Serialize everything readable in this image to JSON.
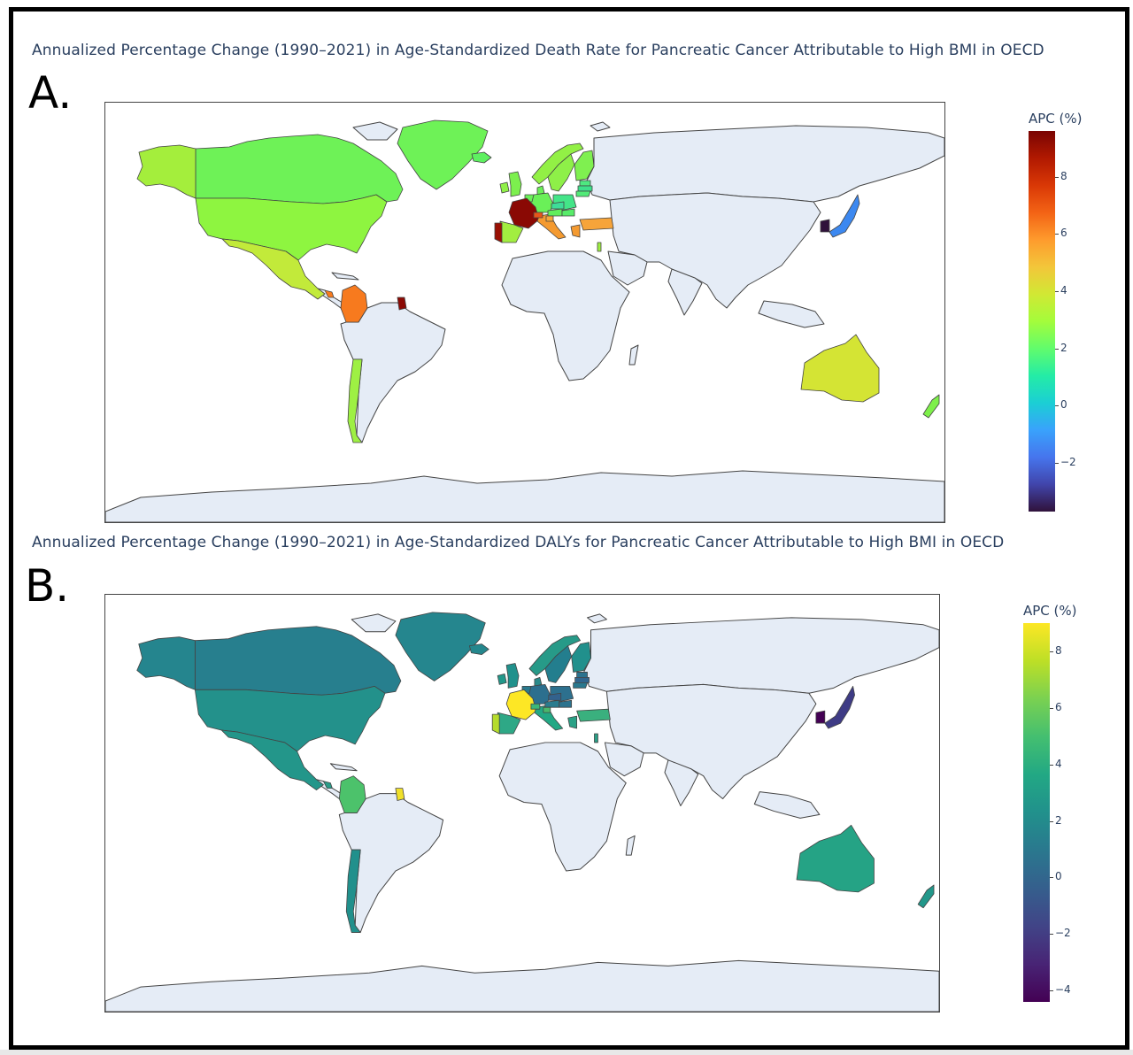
{
  "panels": [
    {
      "letter": "A.",
      "title": "Annualized Percentage Change (1990–2021) in Age-Standardized Death Rate for Pancreatic Cancer Attributable to High BMI in OECD",
      "colorbar": {
        "title": "APC (%)",
        "ticks": [
          "8",
          "6",
          "4",
          "2",
          "0",
          "−2"
        ],
        "tick_values": [
          8,
          6,
          4,
          2,
          0,
          -2
        ],
        "range": [
          -3.7,
          9.6
        ],
        "colorscale": [
          "#30123b",
          "#4145ab",
          "#4675ed",
          "#39a2fc",
          "#1bcfd4",
          "#24eca6",
          "#61fc6c",
          "#a4fc3b",
          "#d1e834",
          "#f3c63a",
          "#fe9b2d",
          "#f36315",
          "#d93806",
          "#b11901",
          "#7a0402"
        ]
      },
      "countries": [
        {
          "name": "Canada",
          "color": "#6ef257"
        },
        {
          "name": "United States",
          "color": "#8ef540"
        },
        {
          "name": "Alaska",
          "color": "#a4ee3c"
        },
        {
          "name": "Mexico",
          "color": "#c2ea3a"
        },
        {
          "name": "Greenland",
          "color": "#6ef257"
        },
        {
          "name": "Costa Rica",
          "color": "#f77a1e"
        },
        {
          "name": "Colombia",
          "color": "#f77a1e"
        },
        {
          "name": "French Guiana",
          "color": "#8c0a04"
        },
        {
          "name": "Chile",
          "color": "#9ef043"
        },
        {
          "name": "Iceland",
          "color": "#5ef060"
        },
        {
          "name": "Ireland",
          "color": "#90f048"
        },
        {
          "name": "United Kingdom",
          "color": "#7cf04e"
        },
        {
          "name": "Norway",
          "color": "#92f045"
        },
        {
          "name": "Sweden",
          "color": "#8ef048"
        },
        {
          "name": "Finland",
          "color": "#7ff050"
        },
        {
          "name": "Estonia",
          "color": "#4ee880"
        },
        {
          "name": "Latvia",
          "color": "#3ee08a"
        },
        {
          "name": "Lithuania",
          "color": "#52ea78"
        },
        {
          "name": "Denmark",
          "color": "#6af058"
        },
        {
          "name": "Germany",
          "color": "#6af058"
        },
        {
          "name": "Poland",
          "color": "#44e488"
        },
        {
          "name": "Netherlands",
          "color": "#6af058"
        },
        {
          "name": "France",
          "color": "#8a0904"
        },
        {
          "name": "Spain",
          "color": "#a2ee40"
        },
        {
          "name": "Portugal",
          "color": "#9a1003"
        },
        {
          "name": "Italy",
          "color": "#f49a30"
        },
        {
          "name": "Switzerland",
          "color": "#e8551a"
        },
        {
          "name": "Austria",
          "color": "#62ee5c"
        },
        {
          "name": "Czechia",
          "color": "#3edc98"
        },
        {
          "name": "Hungary",
          "color": "#58ec6a"
        },
        {
          "name": "Slovenia",
          "color": "#f4a83a"
        },
        {
          "name": "Greece",
          "color": "#f49a30"
        },
        {
          "name": "Turkey",
          "color": "#f6a43a"
        },
        {
          "name": "Israel",
          "color": "#9ef040"
        },
        {
          "name": "South Korea",
          "color": "#30123b"
        },
        {
          "name": "Japan",
          "color": "#3c88f0"
        },
        {
          "name": "Australia",
          "color": "#d4e434"
        },
        {
          "name": "New Zealand",
          "color": "#7ef04a"
        }
      ]
    },
    {
      "letter": "B.",
      "title": "Annualized Percentage Change (1990–2021) in Age-Standardized DALYs for Pancreatic Cancer Attributable to High BMI in OECD",
      "colorbar": {
        "title": "APC (%)",
        "ticks": [
          "8",
          "6",
          "4",
          "2",
          "0",
          "−2",
          "−4"
        ],
        "tick_values": [
          8,
          6,
          4,
          2,
          0,
          -2,
          -4
        ],
        "range": [
          -4.4,
          9.0
        ],
        "colorscale": [
          "#440154",
          "#482475",
          "#414487",
          "#355f8d",
          "#2a788e",
          "#21918c",
          "#22a884",
          "#44bf70",
          "#7ad151",
          "#bddf26",
          "#fde725"
        ]
      },
      "countries": [
        {
          "name": "Canada",
          "color": "#277f8e"
        },
        {
          "name": "United States",
          "color": "#23918b"
        },
        {
          "name": "Alaska",
          "color": "#25858e"
        },
        {
          "name": "Mexico",
          "color": "#23968a"
        },
        {
          "name": "Greenland",
          "color": "#25868e"
        },
        {
          "name": "Costa Rica",
          "color": "#2a9c88"
        },
        {
          "name": "Colombia",
          "color": "#4cc26b"
        },
        {
          "name": "French Guiana",
          "color": "#f0e02a"
        },
        {
          "name": "Chile",
          "color": "#21908c"
        },
        {
          "name": "Iceland",
          "color": "#24878d"
        },
        {
          "name": "Ireland",
          "color": "#22988a"
        },
        {
          "name": "United Kingdom",
          "color": "#21918c"
        },
        {
          "name": "Norway",
          "color": "#279a88"
        },
        {
          "name": "Sweden",
          "color": "#237e8e"
        },
        {
          "name": "Finland",
          "color": "#21908c"
        },
        {
          "name": "Estonia",
          "color": "#2c728e"
        },
        {
          "name": "Latvia",
          "color": "#31668e"
        },
        {
          "name": "Lithuania",
          "color": "#2a788e"
        },
        {
          "name": "Denmark",
          "color": "#2a8a8a"
        },
        {
          "name": "Germany",
          "color": "#2c6f8e"
        },
        {
          "name": "Poland",
          "color": "#2d708e"
        },
        {
          "name": "Netherlands",
          "color": "#2a7a8e"
        },
        {
          "name": "France",
          "color": "#fde725"
        },
        {
          "name": "Spain",
          "color": "#2ea886"
        },
        {
          "name": "Portugal",
          "color": "#b5dc2c"
        },
        {
          "name": "Italy",
          "color": "#22a884"
        },
        {
          "name": "Switzerland",
          "color": "#3cb878"
        },
        {
          "name": "Austria",
          "color": "#2a7c8e"
        },
        {
          "name": "Czechia",
          "color": "#33628d"
        },
        {
          "name": "Hungary",
          "color": "#2c738e"
        },
        {
          "name": "Slovenia",
          "color": "#4ab86c"
        },
        {
          "name": "Greece",
          "color": "#2aa186"
        },
        {
          "name": "Turkey",
          "color": "#3ab07e"
        },
        {
          "name": "Israel",
          "color": "#2a9e86"
        },
        {
          "name": "South Korea",
          "color": "#440154"
        },
        {
          "name": "Japan",
          "color": "#3e3b85"
        },
        {
          "name": "Australia",
          "color": "#25a385"
        },
        {
          "name": "New Zealand",
          "color": "#22978a"
        }
      ]
    }
  ],
  "style": {
    "land": "#e5ecf6",
    "border": "#444444",
    "title_color": "#2a3f5f"
  }
}
